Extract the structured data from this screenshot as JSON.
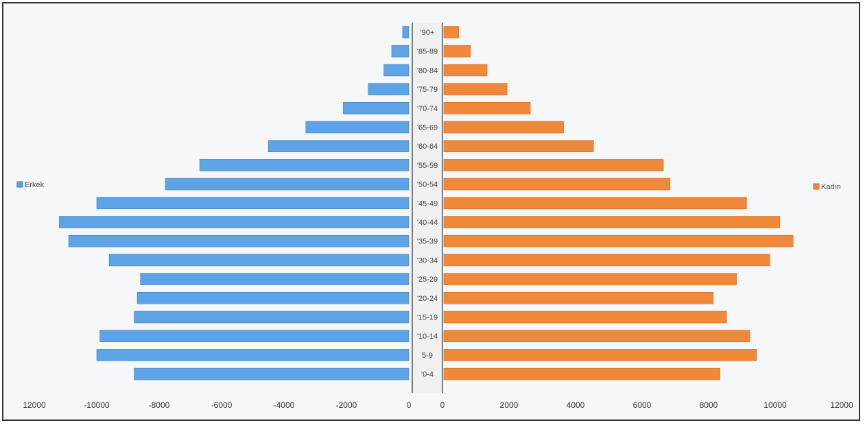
{
  "chart_data": {
    "type": "bar",
    "orientation": "horizontal",
    "categories": [
      "0-4",
      "5-9",
      "10-14",
      "15-19",
      "20-24",
      "25-29",
      "30-34",
      "35-39",
      "40-44",
      "45-49",
      "50-54",
      "55-59",
      "60-64",
      "65-69",
      "70-74",
      "75-79",
      "80-84",
      "85-89",
      "90+"
    ],
    "category_labels": [
      "'0-4",
      "5-9",
      "'10-14",
      "'15-19",
      "'20-24",
      "'25-29",
      "'30-34",
      "'35-39",
      "'40-44",
      "'45-49",
      "'50-54",
      "'55-59",
      "'60-64",
      "'65-69",
      "'70-74",
      "'75-79",
      "'80-84",
      "'85-89",
      "'90+"
    ],
    "series": [
      {
        "name": "Erkek",
        "values": [
          -8800,
          -10000,
          -9900,
          -8800,
          -8700,
          -8600,
          -9600,
          -10900,
          -11200,
          -10000,
          -7800,
          -6700,
          -4500,
          -3300,
          -2100,
          -1300,
          -800,
          -550,
          -200
        ],
        "color": "#5ea3e6"
      },
      {
        "name": "Kadın",
        "values": [
          8300,
          9400,
          9200,
          8500,
          8100,
          8800,
          9800,
          10500,
          10100,
          9100,
          6800,
          6600,
          4500,
          3600,
          2600,
          1900,
          1300,
          800,
          450
        ],
        "color": "#f0883a"
      }
    ],
    "x_left_ticks": [
      "12000",
      "-10000",
      "-8000",
      "-6000",
      "-4000",
      "-2000",
      "0"
    ],
    "x_right_ticks": [
      "0",
      "2000",
      "4000",
      "6000",
      "8000",
      "10000",
      "12000"
    ],
    "xlim_left": [
      -12000,
      0
    ],
    "xlim_right": [
      0,
      12000
    ],
    "legend": {
      "left_label": "Erkek",
      "right_label": "Kadın"
    },
    "legend_placement": "left and right, mid-height"
  }
}
